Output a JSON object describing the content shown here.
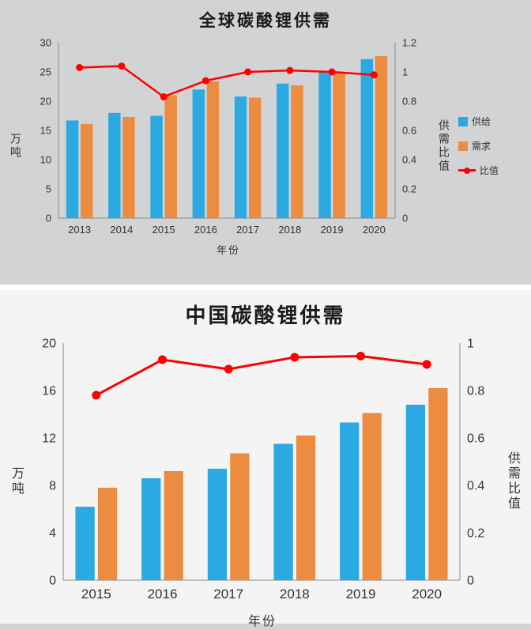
{
  "colors": {
    "panel_top_bg": "#d2d3d5",
    "panel_bottom_bg": "#f4f4f4",
    "axis": "#8a8a8a",
    "text": "#333333"
  },
  "chart_data": [
    {
      "type": "bar",
      "title": "全球碳酸锂供需",
      "xlabel": "年份",
      "ylabel_left": "万吨",
      "ylabel_right": "供需比值",
      "legend_position": "right",
      "grid": false,
      "categories": [
        "2013",
        "2014",
        "2015",
        "2016",
        "2017",
        "2018",
        "2019",
        "2020"
      ],
      "series": [
        {
          "name": "供给",
          "color": "#2BA9E1",
          "values": [
            16.7,
            18.0,
            17.5,
            22.0,
            20.8,
            23.0,
            25.0,
            27.2
          ]
        },
        {
          "name": "需求",
          "color": "#EC8C40",
          "values": [
            16.1,
            17.3,
            21.0,
            23.4,
            20.6,
            22.7,
            24.9,
            27.7
          ]
        }
      ],
      "line": {
        "name": "比值",
        "color": "#FF0000",
        "values": [
          1.03,
          1.04,
          0.83,
          0.94,
          1.0,
          1.01,
          1.0,
          0.98
        ]
      },
      "y_left": {
        "min": 0,
        "max": 30,
        "ticks": [
          "0",
          "5",
          "10",
          "15",
          "20",
          "25",
          "30"
        ]
      },
      "y_right": {
        "min": 0,
        "max": 1.2,
        "ticks": [
          "0",
          "0.2",
          "0.4",
          "0.6",
          "0.8",
          "1",
          "1.2"
        ]
      }
    },
    {
      "type": "bar",
      "title": "中国碳酸锂供需",
      "xlabel": "年份",
      "ylabel_left": "万吨",
      "ylabel_right": "供需比值",
      "legend_position": "none",
      "grid": false,
      "categories": [
        "2015",
        "2016",
        "2017",
        "2018",
        "2019",
        "2020"
      ],
      "series": [
        {
          "name": "供给",
          "color": "#2BA9E1",
          "values": [
            6.2,
            8.6,
            9.4,
            11.5,
            13.3,
            14.8
          ]
        },
        {
          "name": "需求",
          "color": "#EC8C40",
          "values": [
            7.8,
            9.2,
            10.7,
            12.2,
            14.1,
            16.2
          ]
        }
      ],
      "line": {
        "name": "比值",
        "color": "#FF0000",
        "values": [
          0.78,
          0.93,
          0.89,
          0.94,
          0.945,
          0.91
        ]
      },
      "y_left": {
        "min": 0,
        "max": 20,
        "ticks": [
          "0",
          "4",
          "8",
          "12",
          "16",
          "20"
        ]
      },
      "y_right": {
        "min": 0,
        "max": 1,
        "ticks": [
          "0",
          "0.2",
          "0.4",
          "0.6",
          "0.8",
          "1"
        ]
      }
    }
  ]
}
